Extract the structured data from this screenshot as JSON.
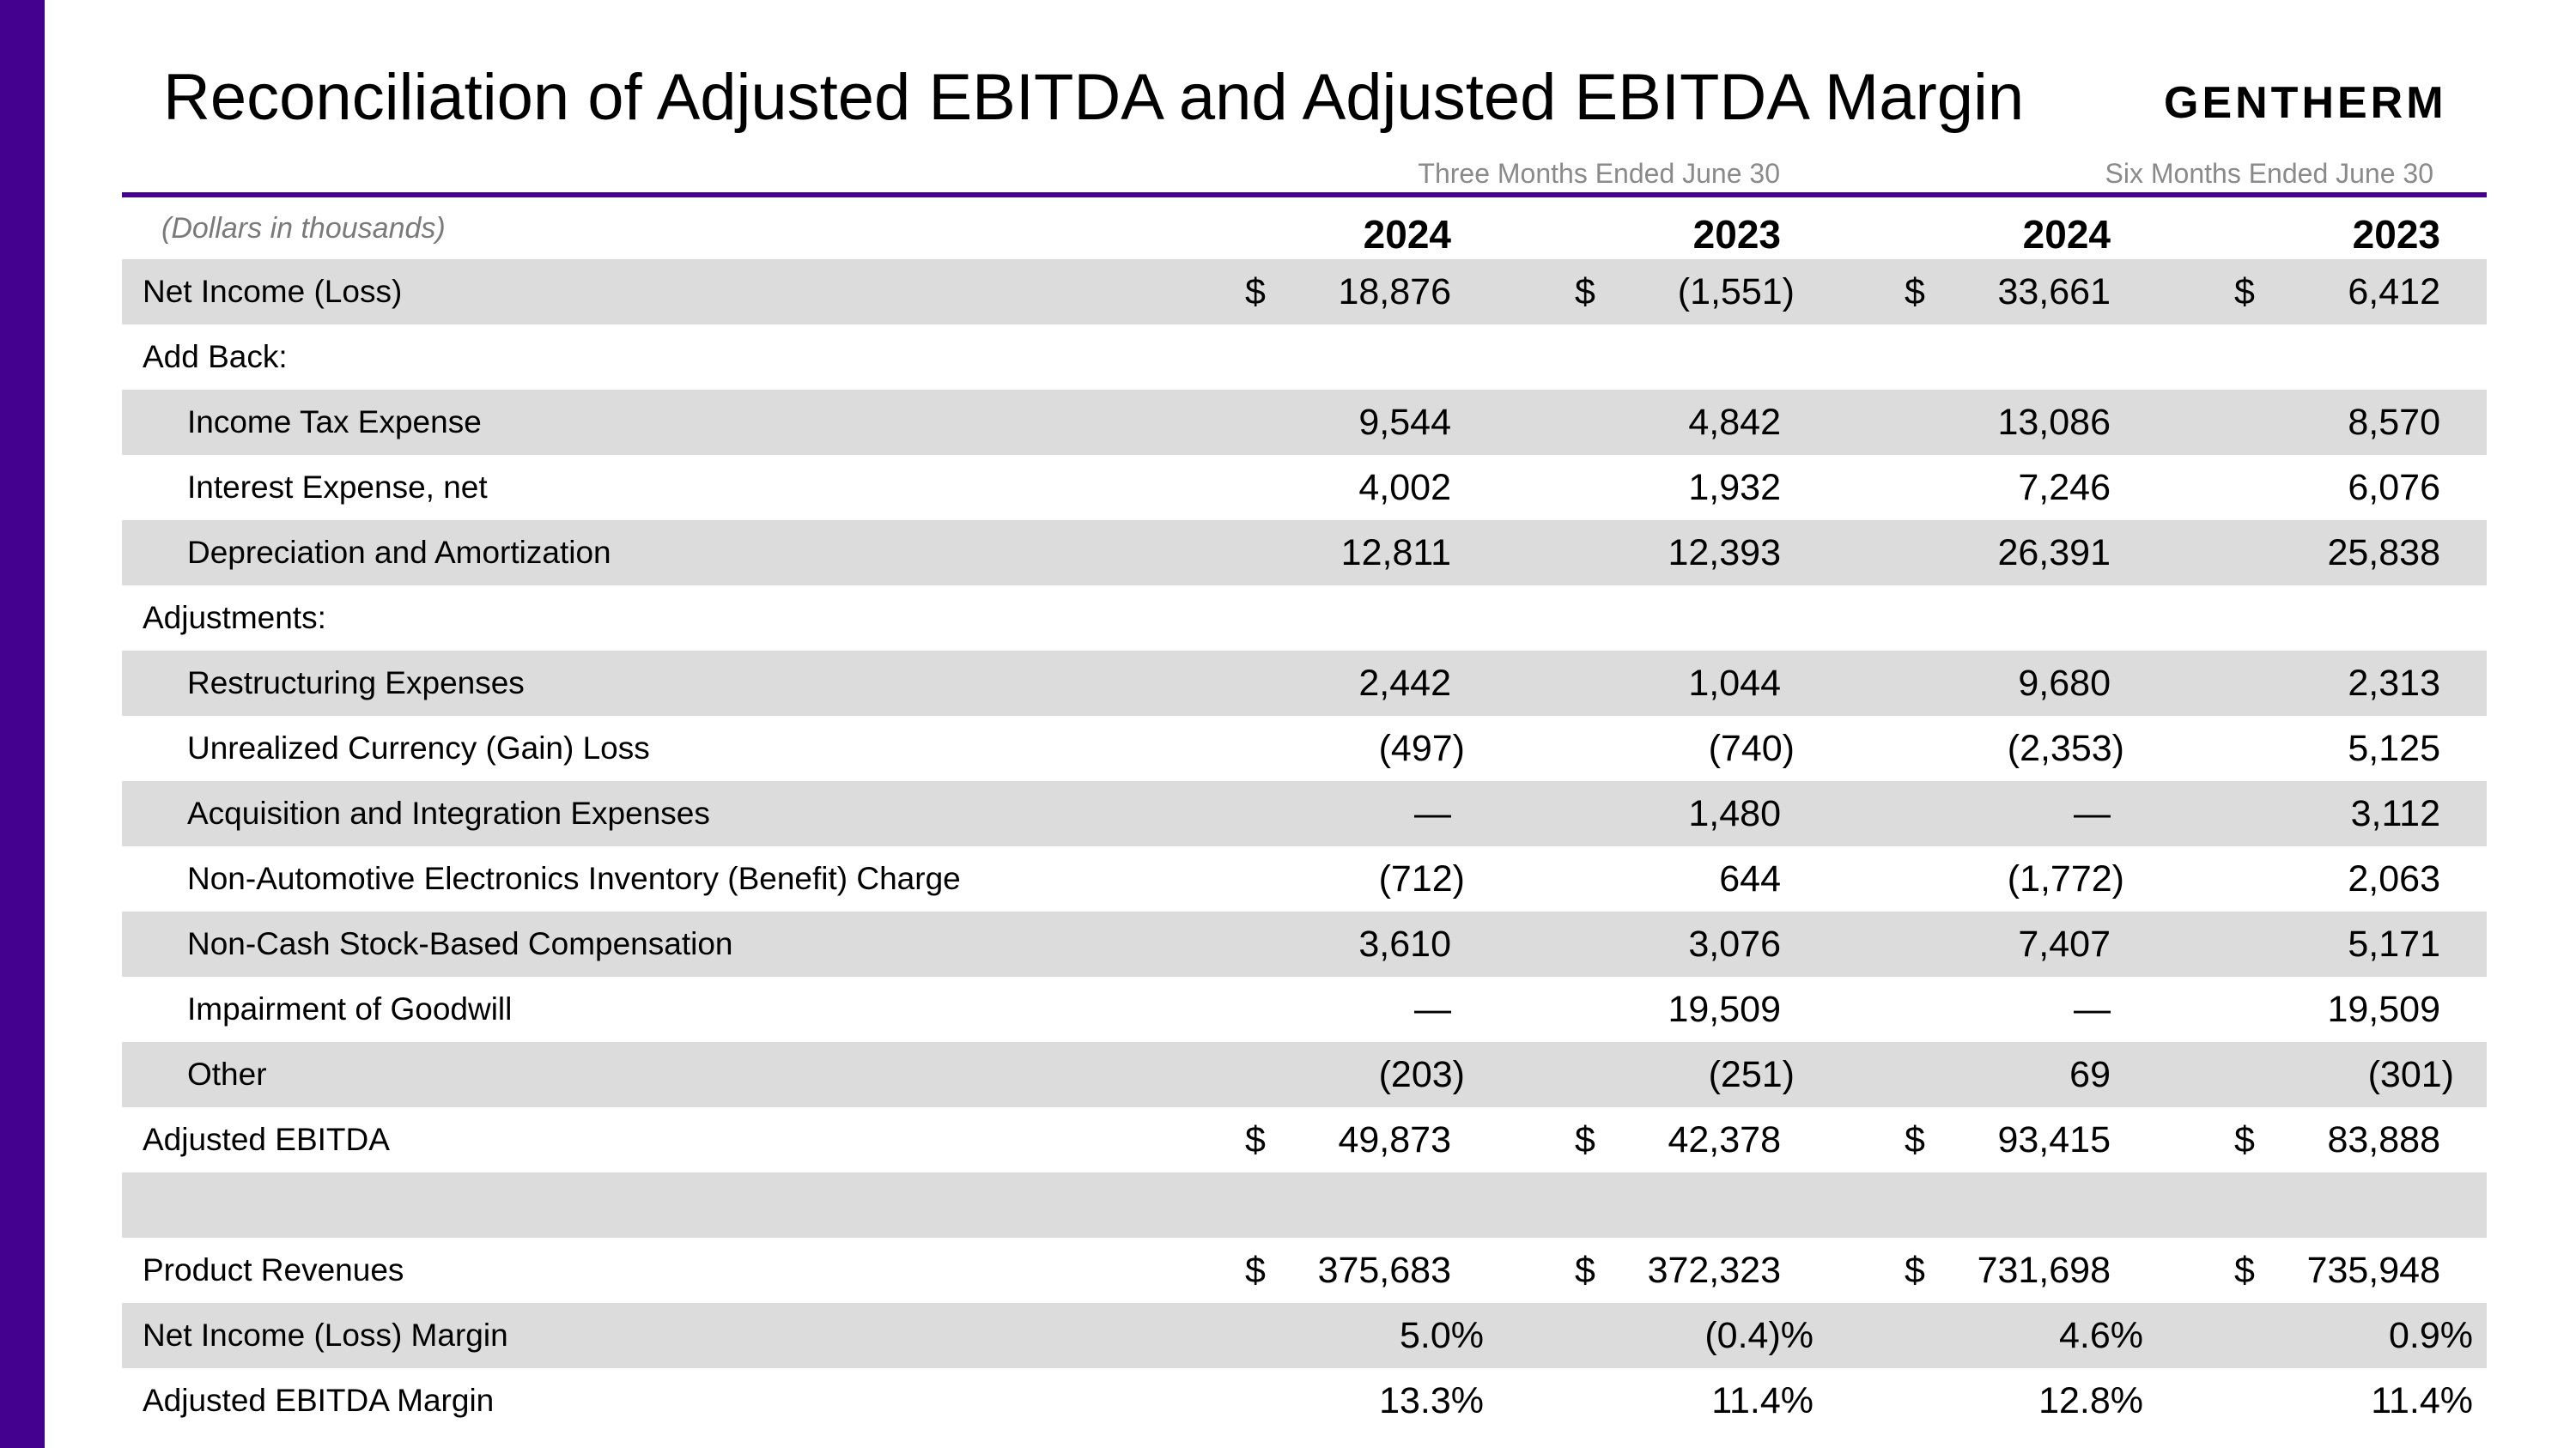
{
  "title": "Reconciliation of Adjusted EBITDA and Adjusted EBITDA Margin",
  "logo_text": "GENTHERM",
  "periods": {
    "three_months": "Three Months Ended June 30",
    "six_months": "Six Months Ended June 30"
  },
  "units_note": "(Dollars in thousands)",
  "columns": [
    "2024",
    "2023",
    "2024",
    "2023"
  ],
  "colors": {
    "accent": "#44008f",
    "shade": "#dcdcdc"
  },
  "rows": [
    {
      "label": "Net Income (Loss)",
      "indent": 0,
      "shade": true,
      "dollar": true,
      "values": [
        "18,876",
        "(1,551)",
        "33,661",
        "6,412"
      ]
    },
    {
      "label": "Add Back:",
      "indent": 0,
      "shade": false,
      "dollar": false,
      "values": [
        "",
        "",
        "",
        ""
      ]
    },
    {
      "label": "Income Tax Expense",
      "indent": 1,
      "shade": true,
      "dollar": false,
      "values": [
        "9,544",
        "4,842",
        "13,086",
        "8,570"
      ]
    },
    {
      "label": "Interest Expense, net",
      "indent": 1,
      "shade": false,
      "dollar": false,
      "values": [
        "4,002",
        "1,932",
        "7,246",
        "6,076"
      ]
    },
    {
      "label": "Depreciation and Amortization",
      "indent": 1,
      "shade": true,
      "dollar": false,
      "values": [
        "12,811",
        "12,393",
        "26,391",
        "25,838"
      ]
    },
    {
      "label": "Adjustments:",
      "indent": 0,
      "shade": false,
      "dollar": false,
      "values": [
        "",
        "",
        "",
        ""
      ]
    },
    {
      "label": "Restructuring Expenses",
      "indent": 1,
      "shade": true,
      "dollar": false,
      "values": [
        "2,442",
        "1,044",
        "9,680",
        "2,313"
      ]
    },
    {
      "label": "Unrealized Currency (Gain) Loss",
      "indent": 1,
      "shade": false,
      "dollar": false,
      "values": [
        "(497)",
        "(740)",
        "(2,353)",
        "5,125"
      ]
    },
    {
      "label": "Acquisition and Integration Expenses",
      "indent": 1,
      "shade": true,
      "dollar": false,
      "values": [
        "—",
        "1,480",
        "—",
        "3,112"
      ]
    },
    {
      "label": "Non-Automotive Electronics Inventory (Benefit) Charge",
      "indent": 1,
      "shade": false,
      "dollar": false,
      "values": [
        "(712)",
        "644",
        "(1,772)",
        "2,063"
      ]
    },
    {
      "label": "Non-Cash Stock-Based Compensation",
      "indent": 1,
      "shade": true,
      "dollar": false,
      "values": [
        "3,610",
        "3,076",
        "7,407",
        "5,171"
      ]
    },
    {
      "label": "Impairment of Goodwill",
      "indent": 1,
      "shade": false,
      "dollar": false,
      "values": [
        "—",
        "19,509",
        "—",
        "19,509"
      ]
    },
    {
      "label": "Other",
      "indent": 1,
      "shade": true,
      "dollar": false,
      "values": [
        "(203)",
        "(251)",
        "69",
        "(301)"
      ]
    },
    {
      "label": "Adjusted EBITDA",
      "indent": 0,
      "shade": false,
      "dollar": true,
      "values": [
        "49,873",
        "42,378",
        "93,415",
        "83,888"
      ]
    },
    {
      "label": "",
      "indent": 0,
      "shade": true,
      "dollar": false,
      "values": [
        "",
        "",
        "",
        ""
      ]
    },
    {
      "label": "Product Revenues",
      "indent": 0,
      "shade": false,
      "dollar": true,
      "values": [
        "375,683",
        "372,323",
        "731,698",
        "735,948"
      ]
    },
    {
      "label": "Net Income (Loss) Margin",
      "indent": 0,
      "shade": true,
      "dollar": false,
      "values": [
        "5.0%",
        "(0.4)%",
        "4.6%",
        "0.9%"
      ]
    },
    {
      "label": "Adjusted EBITDA Margin",
      "indent": 0,
      "shade": false,
      "dollar": false,
      "values": [
        "13.3%",
        "11.4%",
        "12.8%",
        "11.4%"
      ]
    }
  ],
  "currency_symbol": "$"
}
